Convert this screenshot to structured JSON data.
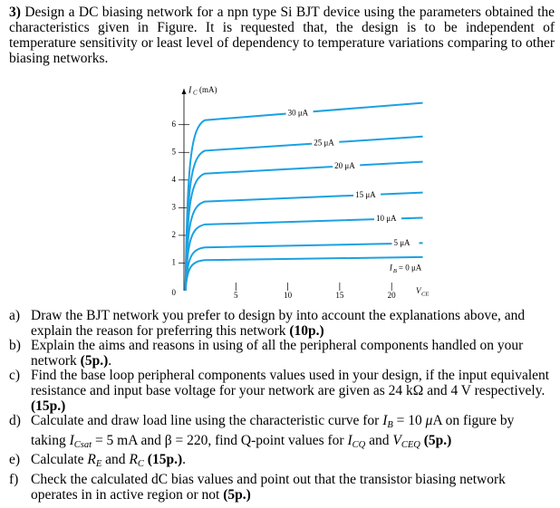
{
  "question": {
    "number": "3)",
    "text": "Design a DC biasing network for a npn type Si BJT device using the parameters obtained the characteristics given in Figure. It is requested that, the design is to be independent of temperature sensitivity or least level of dependency to temperature variations comparing to other biasing networks."
  },
  "chart_data": {
    "type": "line",
    "y_label": {
      "symbol": "I",
      "sub": "C",
      "unit": "(mA)"
    },
    "x_label": {
      "symbol": "V",
      "sub": "CE"
    },
    "xlim": [
      0,
      23.3
    ],
    "xticks": [
      5,
      10,
      15,
      20
    ],
    "ylim": [
      0,
      7.3
    ],
    "yticks": [
      0,
      1,
      2,
      3,
      4,
      5,
      6
    ],
    "color": "#1ba1e2",
    "series": [
      {
        "name": "30 μA",
        "values": [
          6.7
        ]
      },
      {
        "name": "25 μA",
        "values": [
          5.5
        ]
      },
      {
        "name": "20 μA",
        "values": [
          4.6
        ]
      },
      {
        "name": "15 μA",
        "values": [
          3.5
        ]
      },
      {
        "name": "10 μA",
        "values": [
          2.6
        ]
      },
      {
        "name": "5 μA",
        "values": [
          1.7
        ]
      },
      {
        "name": {
          "symbol": "I",
          "sub": "B",
          "text": "= 0 μA"
        },
        "values": [
          1.2
        ]
      }
    ]
  },
  "items": [
    {
      "label": "a)",
      "parts": [
        "Draw the BJT network you prefer to design by into account the explanations above, and explain the reason for preferring this  network ",
        "(10p.)"
      ]
    },
    {
      "label": "b)",
      "parts": [
        "Explain the aims and reasons in using of all the peripheral components handled on your network ",
        "(5p.)",
        "."
      ]
    },
    {
      "label": "c)",
      "parts": [
        "Find the base loop peripheral components values used in your design, if the input equivalent resistance and input base voltage for your network are given as 24 kΩ and 4 V respectively.  ",
        "(15p.)"
      ]
    },
    {
      "label": "d)",
      "parts": [
        "Calculate and draw load line using the characteristic curve for ",
        "I",
        "B",
        " = 10 ",
        "μ",
        "A on figure by taking ",
        "I",
        "Csat",
        " = 5 mA and β = 220, find Q-point values for ",
        "I",
        "CQ",
        " and ",
        "V",
        "CEQ",
        " ",
        "(5p.)"
      ]
    },
    {
      "label": "e)",
      "parts": [
        "Calculate ",
        "R",
        "E",
        " and ",
        "R",
        "C",
        " ",
        "(15p.)",
        "."
      ]
    },
    {
      "label": "f)",
      "parts": [
        "Check the calculated dC bias values and point out that the transistor biasing network operates in in active region or not  ",
        "(5p.)"
      ]
    }
  ]
}
